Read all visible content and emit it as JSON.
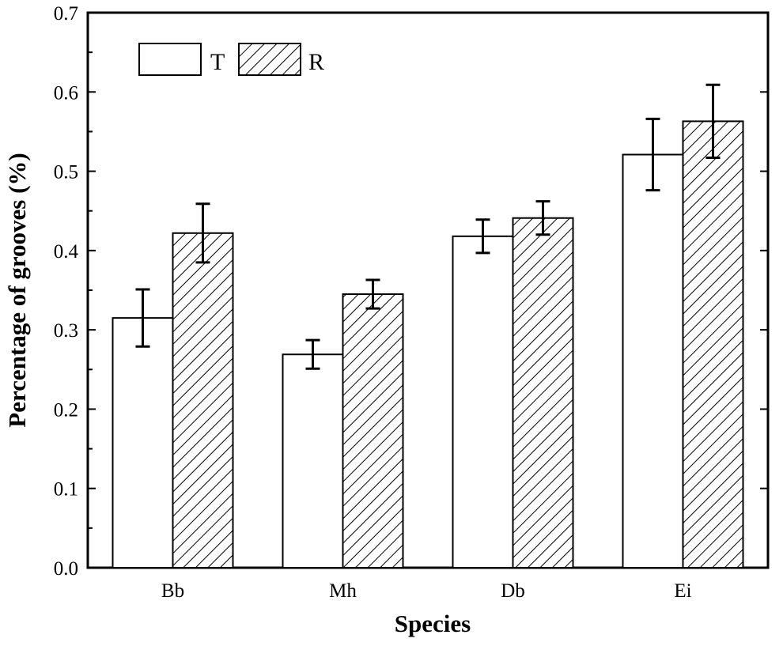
{
  "chart_data": {
    "type": "bar",
    "title": "",
    "xlabel": "Species",
    "ylabel": "Percentage of grooves (%)",
    "ylim": [
      0,
      0.7
    ],
    "yticks": [
      "0.0",
      "0.1",
      "0.2",
      "0.3",
      "0.4",
      "0.5",
      "0.6",
      "0.7"
    ],
    "categories": [
      "Bb",
      "Mh",
      "Db",
      "Ei"
    ],
    "series": [
      {
        "name": "T",
        "pattern": "none",
        "values": [
          0.315,
          0.269,
          0.418,
          0.521
        ],
        "errors": [
          0.036,
          0.018,
          0.021,
          0.045
        ]
      },
      {
        "name": "R",
        "pattern": "hatched",
        "values": [
          0.422,
          0.345,
          0.441,
          0.563
        ],
        "errors": [
          0.037,
          0.018,
          0.021,
          0.046
        ]
      }
    ],
    "legend_position": "top-left",
    "colors": {
      "bar_fill": "#ffffff",
      "stroke": "#000000"
    }
  }
}
